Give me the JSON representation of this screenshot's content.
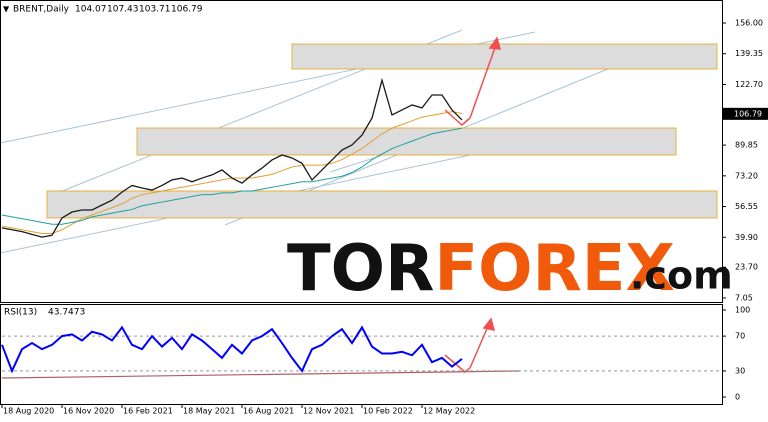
{
  "chart_data": [
    {
      "type": "line",
      "title": "BRENT,Daily",
      "ohlc": [
        104.07,
        107.43,
        103.71,
        106.79
      ],
      "last_price": 106.79,
      "color": "#1a1a1a",
      "values": [
        45,
        44,
        43,
        41.5,
        40,
        41,
        50.4,
        53.6,
        54.7,
        54.7,
        57.4,
        60,
        64.4,
        68,
        66.6,
        65.5,
        68,
        71,
        72,
        70,
        72,
        73.7,
        76.4,
        72,
        69.3,
        73.7,
        77.4,
        81.8,
        84.5,
        82.9,
        80,
        71,
        76.4,
        81.8,
        87.2,
        89.9,
        95.3,
        104.5,
        125,
        106.2,
        108.9,
        111.6,
        110,
        117,
        117,
        108.9,
        103.5
      ],
      "moving_averages": [
        {
          "color": "#e0a030",
          "values": [
            46,
            45,
            44,
            43,
            42,
            42,
            44,
            47,
            50,
            52,
            54,
            56,
            58,
            61,
            63,
            64,
            65,
            66,
            67,
            68,
            69,
            70,
            71,
            72,
            72,
            72,
            73,
            74,
            76,
            78,
            79,
            79,
            79,
            80,
            82,
            85,
            88,
            92,
            96,
            99,
            101,
            103,
            105,
            106,
            107,
            108,
            107
          ]
        },
        {
          "color": "#20a0a0",
          "values": [
            52,
            51,
            50,
            49,
            48,
            47,
            47,
            48,
            49,
            51,
            52,
            53,
            54,
            55,
            57,
            58,
            59,
            60,
            61,
            62,
            63,
            63,
            64,
            64,
            65,
            65,
            66,
            67,
            68,
            69,
            70,
            70,
            71,
            72,
            73,
            75,
            78,
            82,
            85,
            88,
            90,
            92,
            94,
            96,
            97,
            98,
            99
          ]
        }
      ],
      "zones": [
        {
          "low": 131.1,
          "high": 144.6
        },
        {
          "low": 84.5,
          "high": 99.1
        },
        {
          "low": 50.4,
          "high": 65
        }
      ],
      "xlim": [
        0,
        72
      ],
      "ylim": [
        4.86,
        168.46
      ],
      "yticks": [
        {
          "value": 156,
          "label": "156.00"
        },
        {
          "value": 139.35,
          "label": "139.35"
        },
        {
          "value": 122.7,
          "label": "122.70"
        },
        {
          "value": 89.85,
          "label": "89.85"
        },
        {
          "value": 73.2,
          "label": "73.20"
        },
        {
          "value": 56.55,
          "label": "56.55"
        },
        {
          "value": 39.9,
          "label": "39.90"
        },
        {
          "value": 23.7,
          "label": "23.70"
        },
        {
          "value": 7.05,
          "label": "7.05"
        }
      ]
    },
    {
      "type": "line",
      "title": "RSI(13)",
      "value": 43.7473,
      "color": "#0000ff",
      "values": [
        60,
        30,
        55,
        62,
        55,
        60,
        70,
        72,
        65,
        75,
        72,
        65,
        80,
        60,
        55,
        70,
        58,
        68,
        55,
        72,
        65,
        55,
        45,
        60,
        50,
        65,
        70,
        78,
        62,
        45,
        30,
        55,
        60,
        70,
        78,
        62,
        80,
        58,
        50,
        50,
        52,
        48,
        60,
        40,
        45,
        35,
        43.7473
      ],
      "levels": [
        30,
        70
      ],
      "xlim": [
        0,
        72
      ],
      "ylim": [
        -8,
        106.9
      ],
      "yticks": [
        0,
        30,
        70,
        100
      ],
      "xticks": [
        {
          "value": 0,
          "label": "18 Aug 2020"
        },
        {
          "value": 6,
          "label": "16 Nov 2020"
        },
        {
          "value": 12,
          "label": "16 Feb 2021"
        },
        {
          "value": 18,
          "label": "18 May 2021"
        },
        {
          "value": 24,
          "label": "16 Aug 2021"
        },
        {
          "value": 30,
          "label": "12 Nov 2021"
        },
        {
          "value": 36,
          "label": "10 Feb 2022"
        },
        {
          "value": 42,
          "label": "12 May 2022"
        }
      ]
    }
  ],
  "watermark": {
    "part1": "TOR",
    "part2": "FOREX",
    "part3": ".com"
  }
}
